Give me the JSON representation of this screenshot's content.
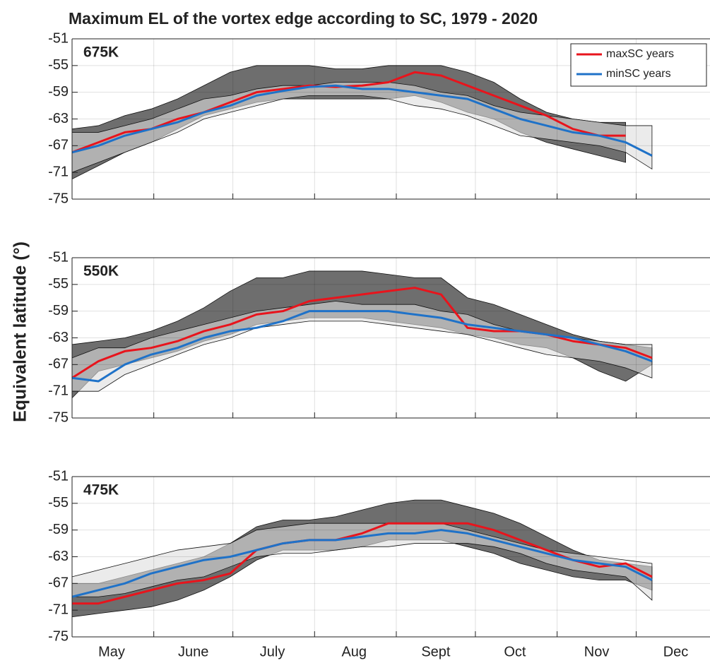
{
  "title": "Maximum EL of the vortex edge according to SC, 1979 - 2020",
  "ylabel": "Equivalent latitude (°)",
  "chart_data": [
    {
      "type": "line",
      "annotation": "675K",
      "legend": "top-right",
      "x": [
        0,
        10,
        20,
        30,
        40,
        50,
        60,
        70,
        80,
        90,
        100,
        110,
        120,
        130,
        140,
        150,
        160,
        170,
        180,
        190,
        200,
        210,
        220
      ],
      "xlim": [
        0,
        242
      ],
      "xgrid": [
        31,
        61,
        92,
        123,
        153,
        184,
        214
      ],
      "ylim": [
        -75,
        -51
      ],
      "yticks": [
        -75,
        -71,
        -67,
        -63,
        -59,
        -55,
        -51
      ],
      "grid": true,
      "bands": [
        {
          "color": "#555555",
          "upper": [
            -64.5,
            -64,
            -62.5,
            -61.5,
            -60,
            -58,
            -56,
            -55,
            -55,
            -55,
            -55.5,
            -55.5,
            -55,
            -55,
            -55,
            -56,
            -57.5,
            -60,
            -62,
            -63,
            -63.5,
            -63.5,
            null
          ],
          "lower": [
            -72,
            -70,
            -68,
            -66.5,
            -64.5,
            -62.5,
            -61.5,
            -60.5,
            -60,
            -60,
            -60,
            -60,
            -60,
            -59.5,
            -60.5,
            -62,
            -63,
            -65,
            -66.5,
            -67.5,
            -68.5,
            -69.5,
            null
          ]
        },
        {
          "color": "#dddddd",
          "upper": [
            -65,
            -65,
            -64,
            -63,
            -61.5,
            -60,
            -59.5,
            -58.5,
            -58,
            -58,
            -57.5,
            -57.5,
            -57.5,
            -58,
            -59,
            -59.5,
            -61,
            -62,
            -62.5,
            -63,
            -63.5,
            -64,
            -64
          ],
          "lower": [
            -71,
            -69.5,
            -68,
            -66.5,
            -65,
            -63,
            -62,
            -61,
            -60,
            -59.5,
            -59.5,
            -59.5,
            -60,
            -61,
            -61.5,
            -62.5,
            -64,
            -65.5,
            -66,
            -66.5,
            -67,
            -68,
            -70.5
          ]
        }
      ],
      "series": [
        {
          "name": "maxSC years",
          "color": "#e8141c",
          "values": [
            -68,
            -66.5,
            -65,
            -64.5,
            -63,
            -62,
            -60.5,
            -59,
            -58.5,
            -58,
            -58.2,
            -58,
            -57.5,
            -56,
            -56.5,
            -58,
            -59.5,
            -61,
            -62.5,
            -64.5,
            -65.5,
            -65.5,
            null
          ]
        },
        {
          "name": "minSC years",
          "color": "#1f72c8",
          "values": [
            -68,
            -67,
            -65.5,
            -64.5,
            -63.5,
            -62,
            -61,
            -59.5,
            -58.8,
            -58.2,
            -58,
            -58.5,
            -58.5,
            -59,
            -59.5,
            -60,
            -61.5,
            -63,
            -64,
            -65,
            -65.5,
            -66.5,
            -68.5
          ]
        }
      ]
    },
    {
      "type": "line",
      "annotation": "550K",
      "x": [
        0,
        10,
        20,
        30,
        40,
        50,
        60,
        70,
        80,
        90,
        100,
        110,
        120,
        130,
        140,
        150,
        160,
        170,
        180,
        190,
        200,
        210,
        220
      ],
      "xlim": [
        0,
        242
      ],
      "xgrid": [
        31,
        61,
        92,
        123,
        153,
        184,
        214
      ],
      "ylim": [
        -75,
        -51
      ],
      "yticks": [
        -75,
        -71,
        -67,
        -63,
        -59,
        -55,
        -51
      ],
      "grid": true,
      "bands": [
        {
          "color": "#555555",
          "upper": [
            -64,
            -63.5,
            -63,
            -62,
            -60.5,
            -58.5,
            -56,
            -54,
            -54,
            -53,
            -53,
            -53,
            -53.5,
            -54,
            -54,
            -57,
            -58,
            -59.5,
            -61,
            -62.5,
            -63.5,
            -64,
            -64.5
          ],
          "lower": [
            -72,
            -68,
            -67,
            -66,
            -65,
            -63.5,
            -62.5,
            -61,
            -60.5,
            -60,
            -60,
            -60,
            -60.5,
            -61,
            -61.5,
            -62.5,
            -63,
            -64,
            -64.5,
            -66,
            -68,
            -69.5,
            -67
          ]
        },
        {
          "color": "#dddddd",
          "upper": [
            -66,
            -64.5,
            -64.5,
            -63,
            -62,
            -61,
            -60,
            -59,
            -58.5,
            -58,
            -57.5,
            -58,
            -58,
            -58,
            -59,
            -59.5,
            -61,
            -62,
            -62.5,
            -63,
            -63.5,
            -64,
            -64
          ],
          "lower": [
            -71,
            -71,
            -68.5,
            -67,
            -65.5,
            -64,
            -63,
            -61.5,
            -61,
            -60.5,
            -60.5,
            -60.5,
            -61,
            -61.5,
            -62,
            -62.5,
            -63.5,
            -64.5,
            -65.5,
            -66,
            -66.5,
            -67.5,
            -69
          ]
        }
      ],
      "series": [
        {
          "color": "#e8141c",
          "values": [
            -69,
            -66.5,
            -65,
            -64.5,
            -63.5,
            -62,
            -61,
            -59.5,
            -59,
            -57.5,
            -57,
            -56.5,
            -56,
            -55.5,
            -56.5,
            -61.5,
            -62,
            -62,
            -62.5,
            -63.5,
            -64,
            -64.5,
            -66
          ]
        },
        {
          "color": "#1f72c8",
          "values": [
            -69,
            -69.5,
            -67,
            -65.5,
            -64.5,
            -63,
            -62,
            -61.5,
            -60.5,
            -59,
            -59,
            -59,
            -59,
            -59.5,
            -60,
            -61,
            -61.5,
            -62,
            -62.5,
            -63,
            -64,
            -65,
            -66.5
          ]
        }
      ]
    },
    {
      "type": "line",
      "annotation": "475K",
      "x": [
        0,
        10,
        20,
        30,
        40,
        50,
        60,
        70,
        80,
        90,
        100,
        110,
        120,
        130,
        140,
        150,
        160,
        170,
        180,
        190,
        200,
        210,
        220
      ],
      "xlim": [
        0,
        242
      ],
      "xgrid": [
        31,
        61,
        92,
        123,
        153,
        184,
        214
      ],
      "xticks": [
        {
          "value": 15,
          "label": "May"
        },
        {
          "value": 46,
          "label": "June"
        },
        {
          "value": 76,
          "label": "July"
        },
        {
          "value": 107,
          "label": "Aug"
        },
        {
          "value": 138,
          "label": "Sept"
        },
        {
          "value": 168,
          "label": "Oct"
        },
        {
          "value": 199,
          "label": "Nov"
        },
        {
          "value": 229,
          "label": "Dec"
        }
      ],
      "ylim": [
        -75,
        -51
      ],
      "yticks": [
        -75,
        -71,
        -67,
        -63,
        -59,
        -55,
        -51
      ],
      "grid": true,
      "bands": [
        {
          "color": "#555555",
          "upper": [
            -67,
            -67,
            -66,
            -65,
            -64,
            -63,
            -61,
            -58.5,
            -57.5,
            -57.5,
            -57,
            -56,
            -55,
            -54.5,
            -54.5,
            -55.5,
            -56.5,
            -58,
            -60,
            -62,
            -63.5,
            -64,
            -64.5
          ],
          "lower": [
            -72,
            -71.5,
            -71,
            -70.5,
            -69.5,
            -68,
            -66,
            -63.5,
            -62,
            -62,
            -62,
            -61.5,
            -60.5,
            -60.5,
            -60.5,
            -61.5,
            -62.5,
            -64,
            -65,
            -66,
            -66.5,
            -66.5,
            -68
          ]
        },
        {
          "color": "#dddddd",
          "upper": [
            -66,
            -65,
            -64,
            -63,
            -62,
            -61.5,
            -61,
            -59,
            -58.5,
            -58,
            -58,
            -58,
            -58,
            -58,
            -58,
            -59,
            -60,
            -61,
            -62,
            -62.5,
            -63,
            -63.5,
            -64
          ],
          "lower": [
            -69,
            -69,
            -68.5,
            -67.5,
            -66.5,
            -66,
            -64.5,
            -63,
            -62.5,
            -62.5,
            -62,
            -61.5,
            -61.5,
            -61,
            -61,
            -61,
            -61.5,
            -62.5,
            -64,
            -65,
            -65.5,
            -66,
            -69.5
          ]
        }
      ],
      "series": [
        {
          "color": "#e8141c",
          "values": [
            -70,
            -70,
            -69,
            -68,
            -67,
            -66.5,
            -65.5,
            -62,
            -61,
            -60.5,
            -60.5,
            -59.5,
            -58,
            -58,
            -58,
            -58,
            -59,
            -60.5,
            -62,
            -63.5,
            -64.5,
            -64,
            -66
          ]
        },
        {
          "color": "#1f72c8",
          "values": [
            -69,
            -68,
            -67,
            -65.5,
            -64.5,
            -63.5,
            -63,
            -62,
            -61,
            -60.5,
            -60.5,
            -60,
            -59.5,
            -59.5,
            -59,
            -59.5,
            -60.5,
            -61.5,
            -62.5,
            -63.5,
            -64,
            -64.5,
            -66.5
          ]
        }
      ]
    }
  ]
}
